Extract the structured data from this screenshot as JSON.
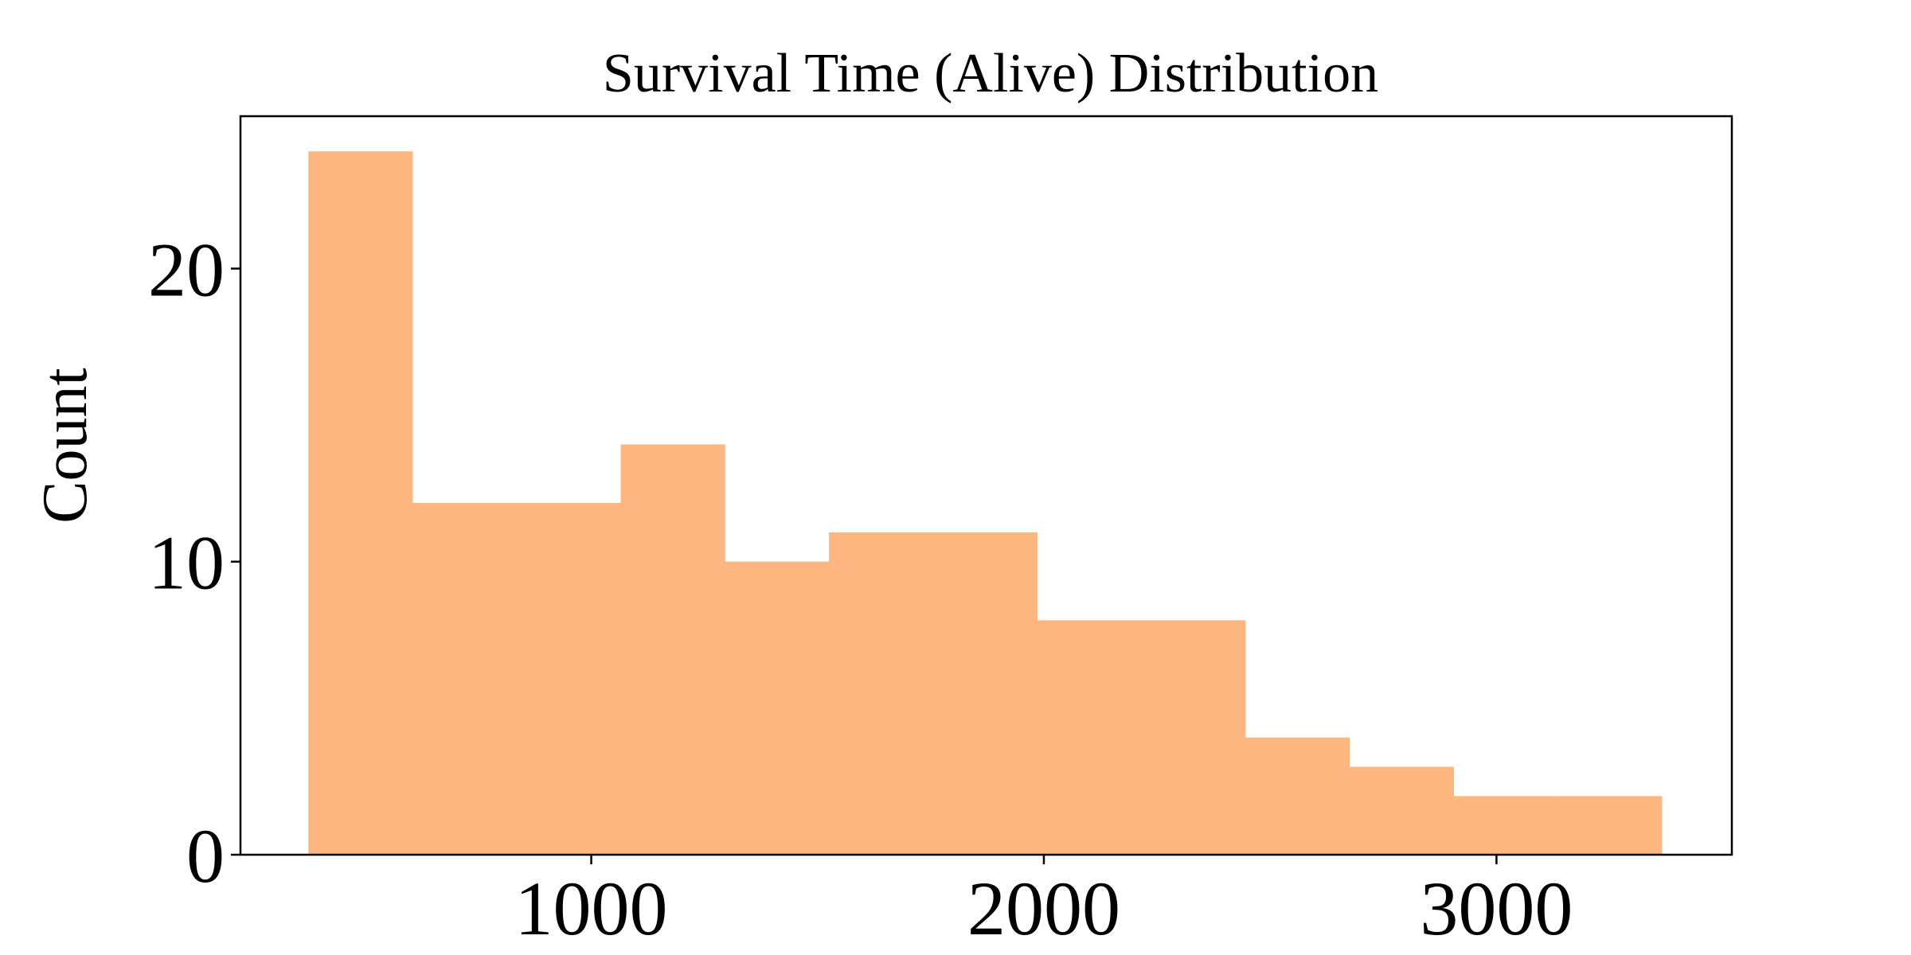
{
  "chart_data": {
    "type": "bar",
    "title": "Survival Time (Alive) Distribution",
    "xlabel": "",
    "ylabel": "Count",
    "bar_color": "#FDB680",
    "xlim": [
      225,
      3520
    ],
    "ylim": [
      0,
      25.2
    ],
    "x_ticks": [
      1000,
      2000,
      3000
    ],
    "y_ticks": [
      0,
      10,
      20
    ],
    "bins": [
      {
        "x0": 375,
        "x1": 605,
        "count": 24
      },
      {
        "x0": 605,
        "x1": 835,
        "count": 12
      },
      {
        "x0": 835,
        "x1": 1065,
        "count": 12
      },
      {
        "x0": 1065,
        "x1": 1295,
        "count": 14
      },
      {
        "x0": 1295,
        "x1": 1525,
        "count": 10
      },
      {
        "x0": 1525,
        "x1": 1755,
        "count": 11
      },
      {
        "x0": 1755,
        "x1": 1985,
        "count": 11
      },
      {
        "x0": 1985,
        "x1": 2215,
        "count": 8
      },
      {
        "x0": 2215,
        "x1": 2445,
        "count": 8
      },
      {
        "x0": 2445,
        "x1": 2675,
        "count": 4
      },
      {
        "x0": 2675,
        "x1": 2905,
        "count": 3
      },
      {
        "x0": 2905,
        "x1": 3135,
        "count": 2
      },
      {
        "x0": 3135,
        "x1": 3365,
        "count": 2
      }
    ],
    "grid": false,
    "legend": "none"
  }
}
